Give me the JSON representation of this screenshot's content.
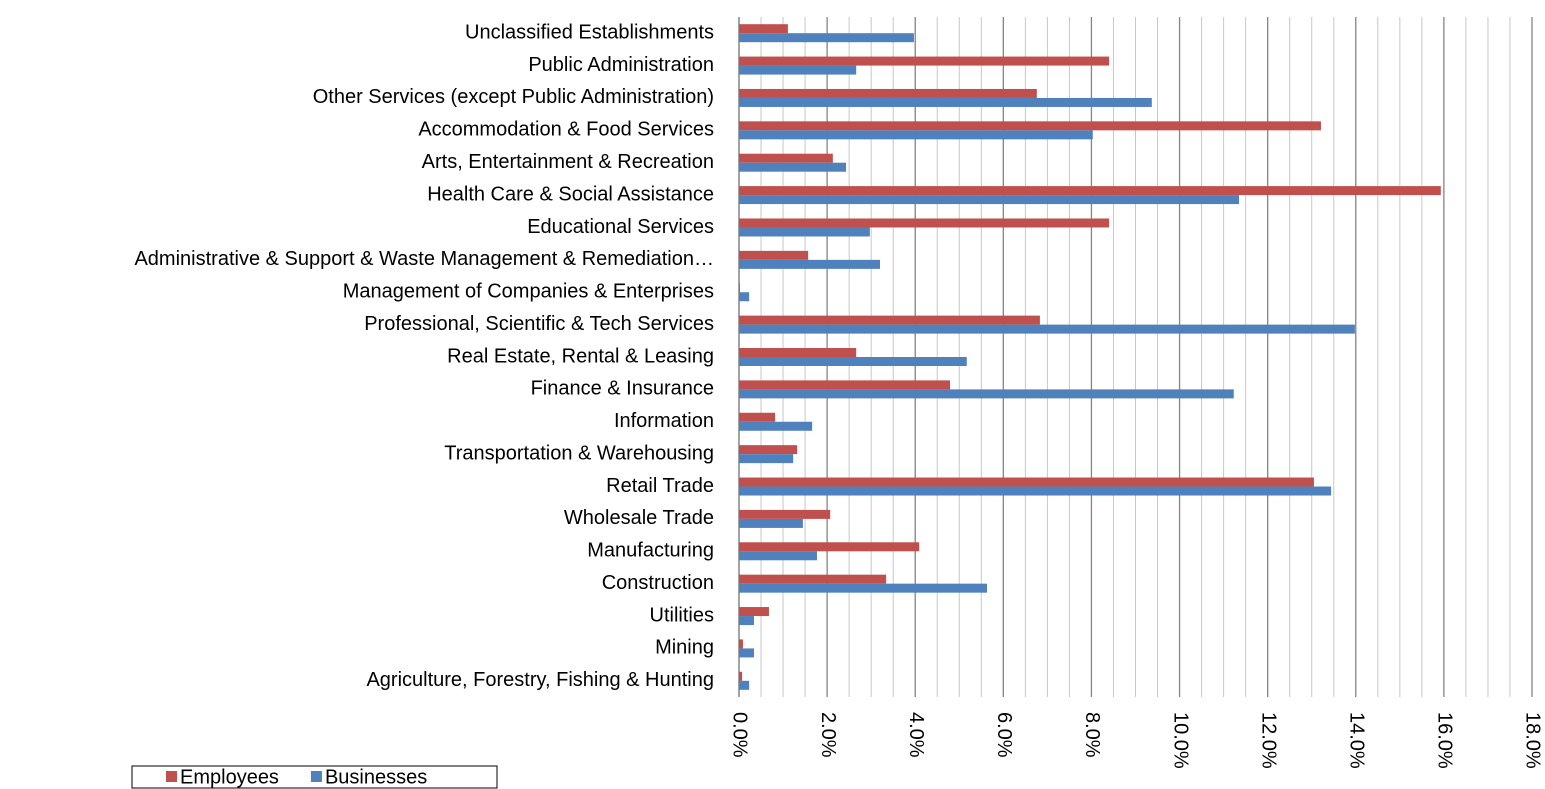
{
  "chart_data": {
    "type": "hbar",
    "categories": [
      "Unclassified Establishments",
      "Public Administration",
      "Other Services (except Public Administration)",
      "Accommodation & Food Services",
      "Arts, Entertainment & Recreation",
      "Health Care & Social Assistance",
      "Educational Services",
      "Administrative & Support & Waste Management & Remediation…",
      "Management of Companies & Enterprises",
      "Professional, Scientific & Tech Services",
      "Real Estate, Rental & Leasing",
      "Finance & Insurance",
      "Information",
      "Transportation & Warehousing",
      "Retail Trade",
      "Wholesale Trade",
      "Manufacturing",
      "Construction",
      "Utilities",
      "Mining",
      "Agriculture, Forestry, Fishing & Hunting"
    ],
    "series": [
      {
        "name": "Employees",
        "color": "#c0504d",
        "values": [
          1.11,
          8.4,
          6.76,
          13.21,
          2.13,
          15.93,
          8.4,
          1.57,
          0.02,
          6.83,
          2.66,
          4.79,
          0.82,
          1.32,
          13.05,
          2.07,
          4.09,
          3.34,
          0.68,
          0.09,
          0.07
        ]
      },
      {
        "name": "Businesses",
        "color": "#4f81bd",
        "values": [
          3.97,
          2.66,
          9.37,
          8.03,
          2.43,
          11.35,
          2.97,
          3.2,
          0.23,
          13.98,
          5.17,
          11.23,
          1.66,
          1.23,
          13.44,
          1.45,
          1.77,
          5.63,
          0.34,
          0.34,
          0.23
        ]
      }
    ],
    "xlim": [
      0,
      18
    ],
    "xticks": [
      {
        "value": 0,
        "label": "0.0%"
      },
      {
        "value": 2,
        "label": "2.0%"
      },
      {
        "value": 4,
        "label": "4.0%"
      },
      {
        "value": 6,
        "label": "6.0%"
      },
      {
        "value": 8,
        "label": "8.0%"
      },
      {
        "value": 10,
        "label": "10.0%"
      },
      {
        "value": 12,
        "label": "12.0%"
      },
      {
        "value": 14,
        "label": "14.0%"
      },
      {
        "value": 16,
        "label": "16.0%"
      },
      {
        "value": 18,
        "label": "18.0%"
      }
    ],
    "minor_grid_step": 0.5,
    "grid": true,
    "legend": "bottom-left"
  }
}
